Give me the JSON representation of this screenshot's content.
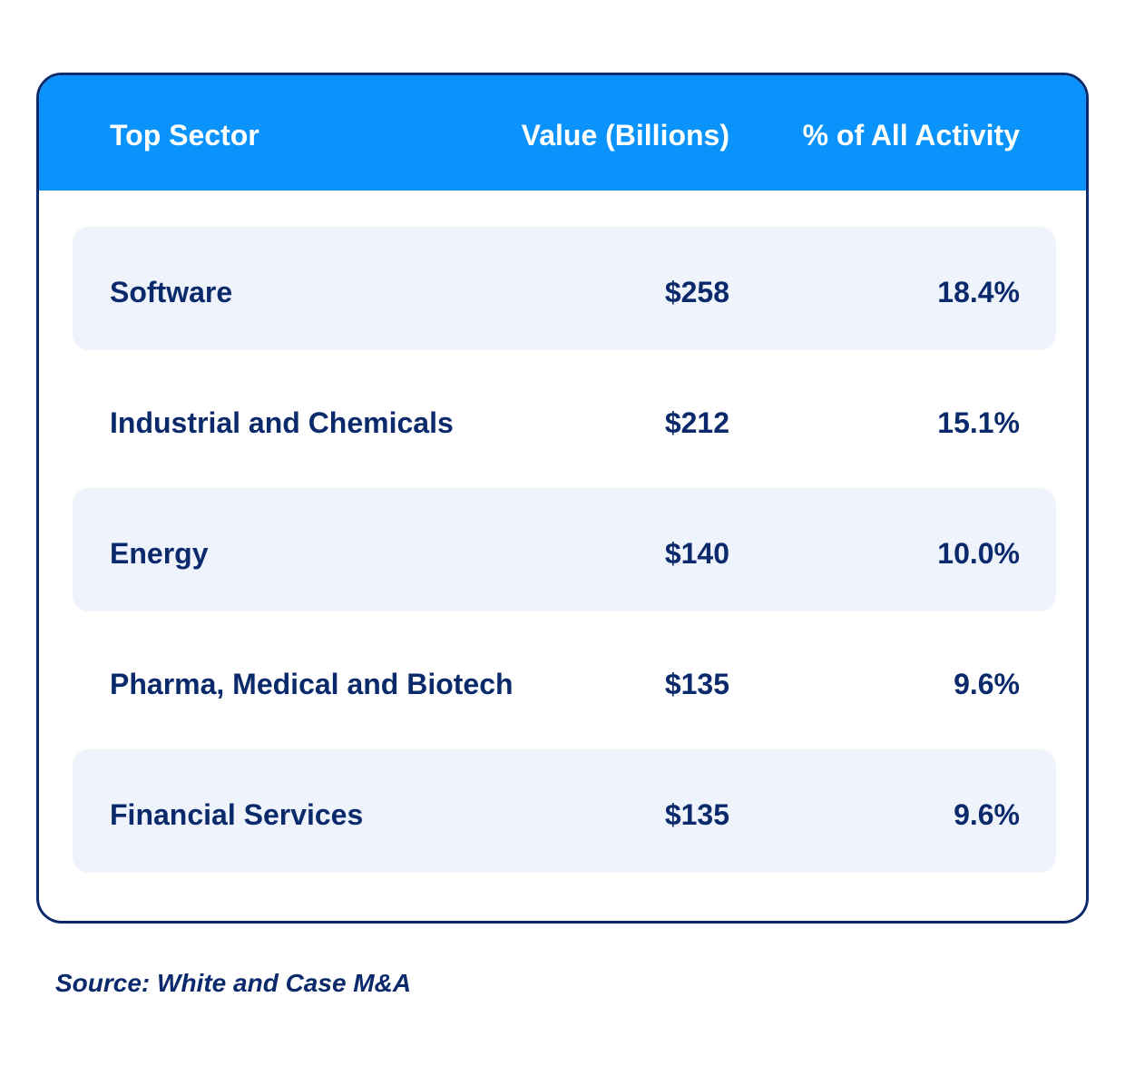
{
  "chart_data": {
    "type": "table",
    "columns": [
      "Top Sector",
      "Value (Billions)",
      "% of All Activity"
    ],
    "rows": [
      {
        "sector": "Software",
        "value": "$258",
        "percent": "18.4%"
      },
      {
        "sector": "Industrial and Chemicals",
        "value": "$212",
        "percent": "15.1%"
      },
      {
        "sector": "Energy",
        "value": "$140",
        "percent": "10.0%"
      },
      {
        "sector": "Pharma, Medical and Biotech",
        "value": "$135",
        "percent": "9.6%"
      },
      {
        "sector": "Financial Services",
        "value": "$135",
        "percent": "9.6%"
      }
    ],
    "source": "Source: White and Case M&A"
  },
  "colors": {
    "header_bg": "#0a93fb",
    "text": "#0b2a6b",
    "row_shade": "#eff3fc",
    "border": "#0b2a6b"
  }
}
